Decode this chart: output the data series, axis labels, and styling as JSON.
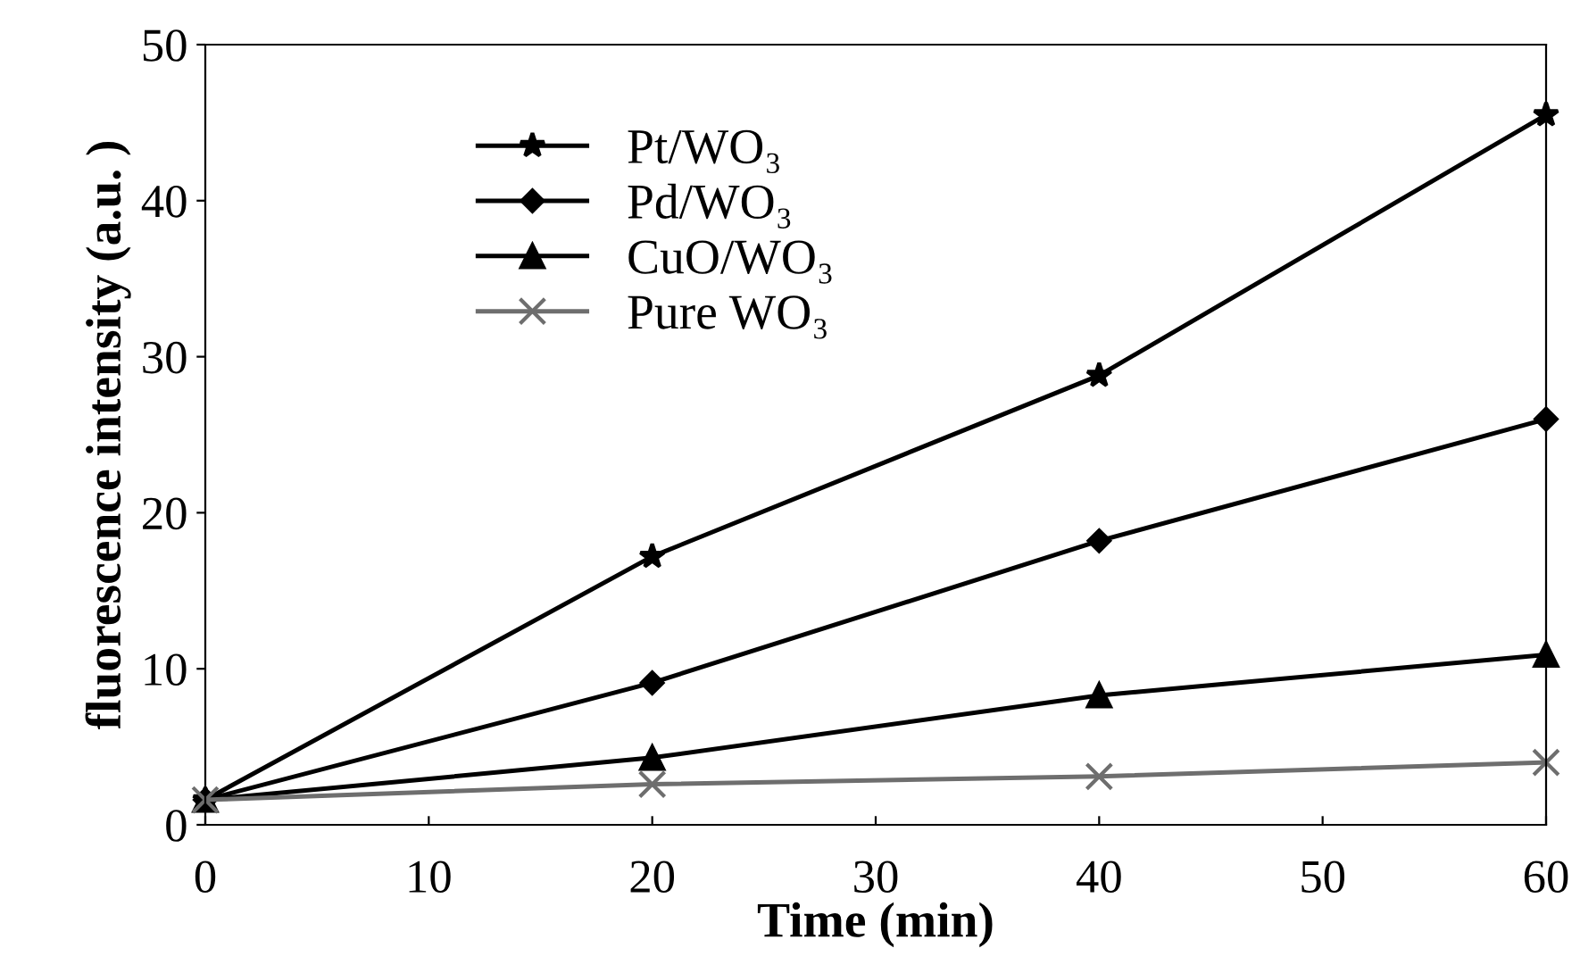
{
  "chart_data": {
    "type": "line",
    "xlabel": "Time (min)",
    "ylabel": "fluorescence intensity (a.u. )",
    "x": [
      0,
      20,
      40,
      60
    ],
    "series": [
      {
        "name": "Pt/WO₃",
        "color": "#000000",
        "marker": "star",
        "values": [
          1.6,
          17.2,
          28.8,
          45.5
        ]
      },
      {
        "name": "Pd/WO₃",
        "color": "#000000",
        "marker": "diamond",
        "values": [
          1.6,
          9.1,
          18.2,
          26.0
        ]
      },
      {
        "name": "CuO/WO₃",
        "color": "#000000",
        "marker": "triangle",
        "values": [
          1.6,
          4.3,
          8.3,
          10.9
        ]
      },
      {
        "name": "Pure WO₃",
        "color": "#6e6e6e",
        "marker": "cross",
        "values": [
          1.6,
          2.6,
          3.1,
          4.0
        ]
      }
    ],
    "xlim": [
      0,
      60
    ],
    "xticks": [
      0,
      10,
      20,
      30,
      40,
      50,
      60
    ],
    "ylim": [
      0,
      50
    ],
    "yticks": [
      0,
      10,
      20,
      30,
      40,
      50
    ],
    "grid": false,
    "legend": "top left",
    "line_style": "solid"
  }
}
